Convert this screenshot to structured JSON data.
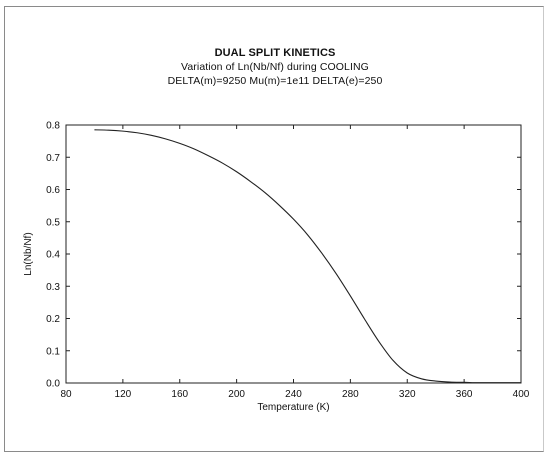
{
  "chart_data": {
    "type": "line",
    "title": "DUAL SPLIT KINETICS",
    "subtitle": "Variation of Ln(Nb/Nf) during COOLING",
    "subtitle2": "DELTA(m)=9250 Mu(m)=1e11 DELTA(e)=250",
    "xlabel": "Temperature (K)",
    "ylabel": "Ln(Nb/Nf)",
    "xlim": [
      80,
      400
    ],
    "ylim": [
      0.0,
      0.8
    ],
    "xticks": [
      "80",
      "120",
      "160",
      "200",
      "240",
      "280",
      "320",
      "360",
      "400"
    ],
    "yticks": [
      "0.0",
      "0.1",
      "0.2",
      "0.3",
      "0.4",
      "0.5",
      "0.6",
      "0.7",
      "0.8"
    ],
    "grid": false,
    "legend": "none",
    "line_color": "#222222",
    "series": [
      {
        "x": [
          100,
          110,
          120,
          130,
          140,
          150,
          160,
          170,
          180,
          190,
          200,
          210,
          220,
          230,
          240,
          250,
          260,
          270,
          280,
          290,
          300,
          310,
          320,
          330,
          340,
          350,
          360,
          370,
          380,
          390,
          400
        ],
        "values": [
          0.785,
          0.784,
          0.781,
          0.776,
          0.768,
          0.757,
          0.743,
          0.726,
          0.705,
          0.682,
          0.655,
          0.624,
          0.59,
          0.551,
          0.508,
          0.459,
          0.402,
          0.339,
          0.27,
          0.198,
          0.129,
          0.07,
          0.031,
          0.013,
          0.006,
          0.003,
          0.002,
          0.001,
          0.001,
          0.001,
          0.001
        ]
      }
    ]
  }
}
